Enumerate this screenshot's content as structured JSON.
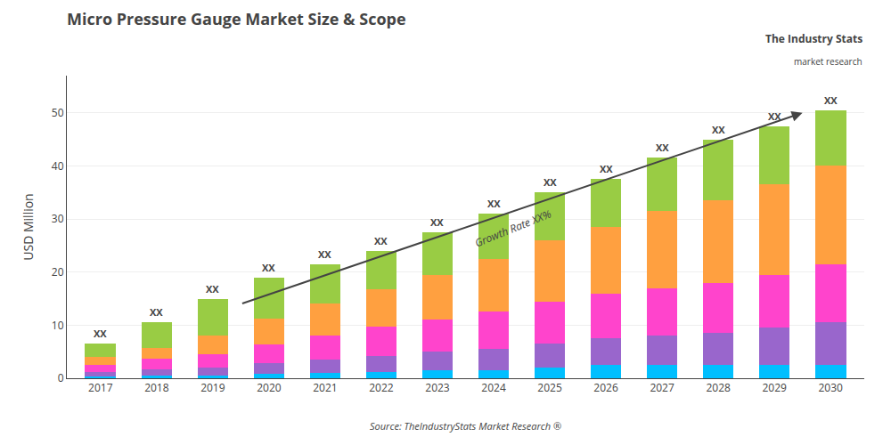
{
  "chart_data": {
    "type": "bar",
    "title": "Micro Pressure Gauge Market Size & Scope",
    "ylabel": "USD Million",
    "x": [
      2017,
      2018,
      2019,
      2020,
      2021,
      2022,
      2023,
      2024,
      2025,
      2026,
      2027,
      2028,
      2029,
      2030
    ],
    "series": [
      {
        "color": "#00BFFF",
        "values": [
          0.4,
          0.5,
          0.5,
          0.8,
          1.0,
          1.2,
          1.5,
          1.5,
          2.0,
          2.5,
          2.5,
          2.5,
          2.5,
          2.5
        ]
      },
      {
        "color": "#9966CC",
        "values": [
          0.8,
          1.2,
          1.5,
          2.0,
          2.5,
          3.0,
          3.5,
          4.0,
          4.5,
          5.0,
          5.5,
          6.0,
          7.0,
          8.0
        ]
      },
      {
        "color": "#FF44CC",
        "values": [
          1.3,
          2.0,
          2.5,
          3.5,
          4.5,
          5.5,
          6.0,
          7.0,
          8.0,
          8.5,
          9.0,
          9.5,
          10.0,
          11.0
        ]
      },
      {
        "color": "#FFA040",
        "values": [
          1.5,
          2.0,
          3.5,
          5.0,
          6.0,
          7.0,
          8.5,
          10.0,
          11.5,
          12.5,
          14.5,
          15.5,
          17.0,
          18.5
        ]
      },
      {
        "color": "#99CC44",
        "values": [
          2.5,
          4.8,
          7.0,
          7.7,
          7.5,
          7.3,
          8.0,
          8.5,
          9.0,
          9.0,
          10.0,
          11.5,
          11.0,
          10.5
        ]
      }
    ],
    "stacked": true,
    "xlim": [
      2016.4,
      2030.6
    ],
    "xticks": [
      2017,
      2018,
      2019,
      2020,
      2021,
      2022,
      2023,
      2024,
      2025,
      2026,
      2027,
      2028,
      2029,
      2030
    ],
    "ylim": [
      0,
      57
    ],
    "yticks": [
      0,
      10,
      20,
      30,
      40,
      50
    ],
    "grid": true,
    "annotations": [
      {
        "text": "XX",
        "x": 2017
      },
      {
        "text": "XX",
        "x": 2018
      },
      {
        "text": "XX",
        "x": 2019
      },
      {
        "text": "XX",
        "x": 2020
      },
      {
        "text": "XX",
        "x": 2021
      },
      {
        "text": "XX",
        "x": 2022
      },
      {
        "text": "XX",
        "x": 2023
      },
      {
        "text": "XX",
        "x": 2024
      },
      {
        "text": "XX",
        "x": 2025
      },
      {
        "text": "XX",
        "x": 2026
      },
      {
        "text": "XX",
        "x": 2027
      },
      {
        "text": "XX",
        "x": 2028
      },
      {
        "text": "XX",
        "x": 2029
      },
      {
        "text": "XX",
        "x": 2030
      },
      {
        "text": "Growth Rate XX%",
        "arrow_from": [
          2019.5,
          14.0
        ],
        "arrow_to": [
          2029.5,
          50.0
        ]
      }
    ],
    "source": "Source: TheIndustryStats Market Research ®",
    "logo": [
      "The Industry Stats",
      "market research"
    ]
  }
}
